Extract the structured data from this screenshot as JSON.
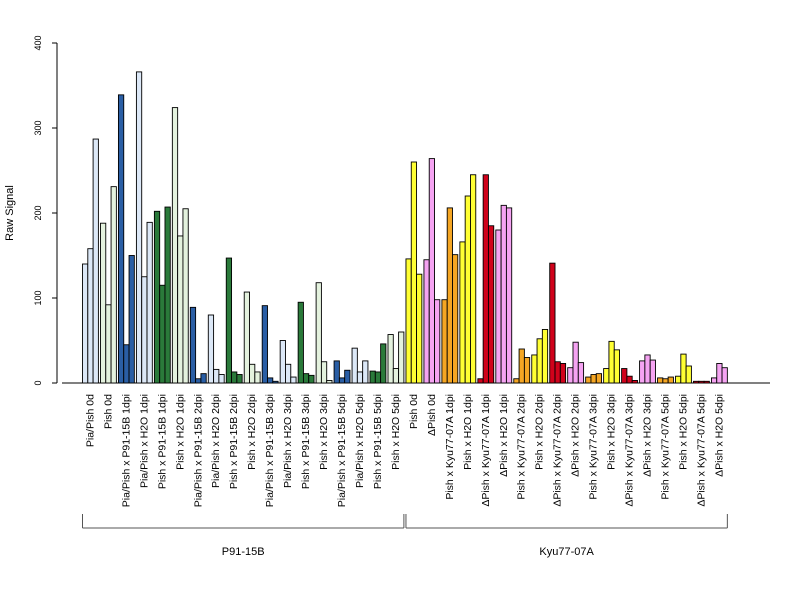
{
  "chart_data": {
    "type": "bar",
    "title": "",
    "xlabel": "",
    "ylabel": "Raw Signal",
    "ylim": [
      0,
      400
    ],
    "yticks": [
      0,
      100,
      200,
      300,
      400
    ],
    "grid": false,
    "legend": "none",
    "colors": {
      "light_blue": "#dce8f7",
      "dark_blue": "#2a5ea5",
      "dark_green": "#2a7a3a",
      "light_green": "#e4f2de",
      "yellow": "#ffff33",
      "pink": "#f5a3f2",
      "orange": "#f5a623",
      "red": "#d0021b",
      "outline": "#000000"
    },
    "category_groups": [
      {
        "name": "P91-15B"
      },
      {
        "name": "Kyu77-07A"
      }
    ],
    "groups": [
      {
        "label": "Pia/Pish 0d",
        "group": 0,
        "color": "light_blue",
        "values": [
          140,
          158,
          287
        ]
      },
      {
        "label": "Pish 0d",
        "group": 0,
        "color": "light_green",
        "values": [
          188,
          92,
          231
        ]
      },
      {
        "label": "Pia/Pish x P91-15B 1dpi",
        "group": 0,
        "color": "dark_blue",
        "values": [
          339,
          45,
          150
        ]
      },
      {
        "label": "Pia/Pish x H2O 1dpi",
        "group": 0,
        "color": "light_blue",
        "values": [
          366,
          125,
          189
        ]
      },
      {
        "label": "Pish x P91-15B 1dpi",
        "group": 0,
        "color": "dark_green",
        "values": [
          202,
          115,
          207
        ]
      },
      {
        "label": "Pish x H2O 1dpi",
        "group": 0,
        "color": "light_green",
        "values": [
          324,
          173,
          205
        ]
      },
      {
        "label": "Pia/Pish x P91-15B 2dpi",
        "group": 0,
        "color": "dark_blue",
        "values": [
          89,
          5,
          11
        ]
      },
      {
        "label": "Pia/Pish x H2O 2dpi",
        "group": 0,
        "color": "light_blue",
        "values": [
          80,
          16,
          10
        ]
      },
      {
        "label": "Pish x P91-15B 2dpi",
        "group": 0,
        "color": "dark_green",
        "values": [
          147,
          13,
          10
        ]
      },
      {
        "label": "Pish x H2O 2dpi",
        "group": 0,
        "color": "light_green",
        "values": [
          107,
          22,
          13
        ]
      },
      {
        "label": "Pia/Pish x P91-15B 3dpi",
        "group": 0,
        "color": "dark_blue",
        "values": [
          91,
          6,
          2
        ]
      },
      {
        "label": "Pia/Pish x H2O 3dpi",
        "group": 0,
        "color": "light_blue",
        "values": [
          50,
          22,
          7
        ]
      },
      {
        "label": "Pish x P91-15B 3dpi",
        "group": 0,
        "color": "dark_green",
        "values": [
          95,
          11,
          9
        ]
      },
      {
        "label": "Pish x H2O 3dpi",
        "group": 0,
        "color": "light_green",
        "values": [
          118,
          25,
          3
        ]
      },
      {
        "label": "Pia/Pish x P91-15B 5dpi",
        "group": 0,
        "color": "dark_blue",
        "values": [
          26,
          6,
          15
        ]
      },
      {
        "label": "Pia/Pish x H2O 5dpi",
        "group": 0,
        "color": "light_blue",
        "values": [
          41,
          13,
          26
        ]
      },
      {
        "label": "Pish x P91-15B 5dpi",
        "group": 0,
        "color": "dark_green",
        "values": [
          14,
          13,
          46
        ]
      },
      {
        "label": "Pish x H2O 5dpi",
        "group": 0,
        "color": "light_green",
        "values": [
          57,
          17,
          60
        ]
      },
      {
        "label": "Pish 0d",
        "group": 1,
        "color": "yellow",
        "values": [
          146,
          260,
          128
        ]
      },
      {
        "label": "ΔPish 0d",
        "group": 1,
        "color": "pink",
        "values": [
          145,
          264,
          98
        ]
      },
      {
        "label": "Pish x Kyu77-07A 1dpi",
        "group": 1,
        "color": "orange",
        "values": [
          98,
          206,
          151
        ]
      },
      {
        "label": "Pish x H2O 1dpi",
        "group": 1,
        "color": "yellow",
        "values": [
          166,
          220,
          245
        ]
      },
      {
        "label": "ΔPish x Kyu77-07A 1dpi",
        "group": 1,
        "color": "red",
        "values": [
          5,
          245,
          185
        ]
      },
      {
        "label": "ΔPish x H2O 1dpi",
        "group": 1,
        "color": "pink",
        "values": [
          180,
          209,
          206
        ]
      },
      {
        "label": "Pish x Kyu77-07A 2dpi",
        "group": 1,
        "color": "orange",
        "values": [
          5,
          40,
          30
        ]
      },
      {
        "label": "Pish x H2O 2dpi",
        "group": 1,
        "color": "yellow",
        "values": [
          33,
          52,
          63
        ]
      },
      {
        "label": "ΔPish x Kyu77-07A 2dpi",
        "group": 1,
        "color": "red",
        "values": [
          141,
          25,
          23
        ]
      },
      {
        "label": "ΔPish x H2O 2dpi",
        "group": 1,
        "color": "pink",
        "values": [
          18,
          48,
          24
        ]
      },
      {
        "label": "Pish x Kyu77-07A 3dpi",
        "group": 1,
        "color": "orange",
        "values": [
          7,
          10,
          11
        ]
      },
      {
        "label": "Pish x H2O 3dpi",
        "group": 1,
        "color": "yellow",
        "values": [
          17,
          49,
          39
        ]
      },
      {
        "label": "ΔPish x Kyu77-07A 3dpi",
        "group": 1,
        "color": "red",
        "values": [
          17,
          8,
          3
        ]
      },
      {
        "label": "ΔPish x H2O 3dpi",
        "group": 1,
        "color": "pink",
        "values": [
          26,
          33,
          27
        ]
      },
      {
        "label": "Pish x Kyu77-07A 5dpi",
        "group": 1,
        "color": "orange",
        "values": [
          6,
          5,
          7
        ]
      },
      {
        "label": "Pish x H2O 5dpi",
        "group": 1,
        "color": "yellow",
        "values": [
          8,
          34,
          20
        ]
      },
      {
        "label": "ΔPish x Kyu77-07A 5dpi",
        "group": 1,
        "color": "red",
        "values": [
          2,
          2,
          2
        ]
      },
      {
        "label": "ΔPish x H2O 5dpi",
        "group": 1,
        "color": "pink",
        "values": [
          6,
          23,
          18
        ]
      }
    ]
  }
}
